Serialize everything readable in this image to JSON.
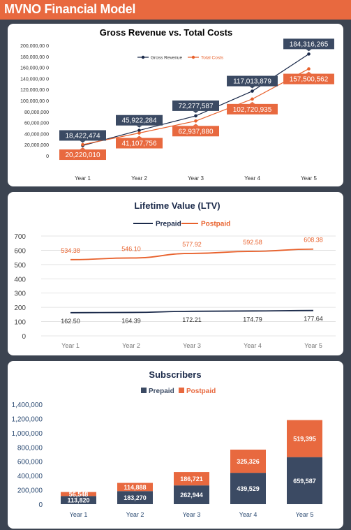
{
  "app": {
    "title": "MVNO Financial Model"
  },
  "colors": {
    "header": "#e8693f",
    "background": "#3c4451",
    "navy": "#3b4a63",
    "orange": "#e8693f",
    "line_dark": "#1b2a4a",
    "line_orange": "#e8612c"
  },
  "chart_data": [
    {
      "type": "line",
      "title": "Gross Revenue vs. Total Costs",
      "categories": [
        "Year 1",
        "Year 2",
        "Year 3",
        "Year 4",
        "Year 5"
      ],
      "series": [
        {
          "name": "Gross Revenue",
          "values": [
            18422474,
            45922284,
            72277587,
            117013879,
            184316265
          ],
          "labels": [
            "18,422,474",
            "45,922,284",
            "72,277,587",
            "117,013,879",
            "184,316,265"
          ]
        },
        {
          "name": "Total Costs",
          "values": [
            20220010,
            41107756,
            62937880,
            102720935,
            157500562
          ],
          "labels": [
            "20,220,010",
            "41,107,756",
            "62,937,880",
            "102,720,935",
            "157,500,562"
          ]
        }
      ],
      "ylim": [
        0,
        200000000
      ],
      "yticks": [
        "0",
        "20,000,000",
        "40,000,000",
        "60,000,000",
        "80,000,000",
        "100,000,00 0",
        "120,000,00 0",
        "140,000,00 0",
        "160,000,00 0",
        "180,000,00 0",
        "200,000,00 0"
      ],
      "legend": "top-center"
    },
    {
      "type": "line",
      "title": "Lifetime Value (LTV)",
      "categories": [
        "Year 1",
        "Year 2",
        "Year 3",
        "Year 4",
        "Year 5"
      ],
      "series": [
        {
          "name": "Prepaid",
          "values": [
            162.5,
            164.39,
            172.21,
            174.79,
            177.64
          ],
          "labels": [
            "162.50",
            "164.39",
            "172.21",
            "174.79",
            "177.64"
          ]
        },
        {
          "name": "Postpaid",
          "values": [
            534.38,
            546.1,
            577.92,
            592.58,
            608.38
          ],
          "labels": [
            "534.38",
            "546.10",
            "577.92",
            "592.58",
            "608.38"
          ]
        }
      ],
      "ylim": [
        0,
        700
      ],
      "yticks": [
        "0",
        "100",
        "200",
        "300",
        "400",
        "500",
        "600",
        "700"
      ],
      "grid": true,
      "legend": "top-center"
    },
    {
      "type": "bar",
      "stacked": true,
      "title": "Subscribers",
      "categories": [
        "Year 1",
        "Year 2",
        "Year 3",
        "Year 4",
        "Year 5"
      ],
      "series": [
        {
          "name": "Prepaid",
          "values": [
            113820,
            183270,
            262944,
            439529,
            659587
          ],
          "labels": [
            "113,820",
            "183,270",
            "262,944",
            "439,529",
            "659,587"
          ]
        },
        {
          "name": "Postpaid",
          "values": [
            56548,
            114888,
            186721,
            325326,
            519395
          ],
          "labels": [
            "56,548",
            "114,888",
            "186,721",
            "325,326",
            "519,395"
          ]
        }
      ],
      "ylim": [
        0,
        1400000
      ],
      "yticks": [
        "0",
        "200,000",
        "400,000",
        "600,000",
        "800,000",
        "1,000,000",
        "1,200,000",
        "1,400,000"
      ],
      "legend": "top-center"
    }
  ]
}
